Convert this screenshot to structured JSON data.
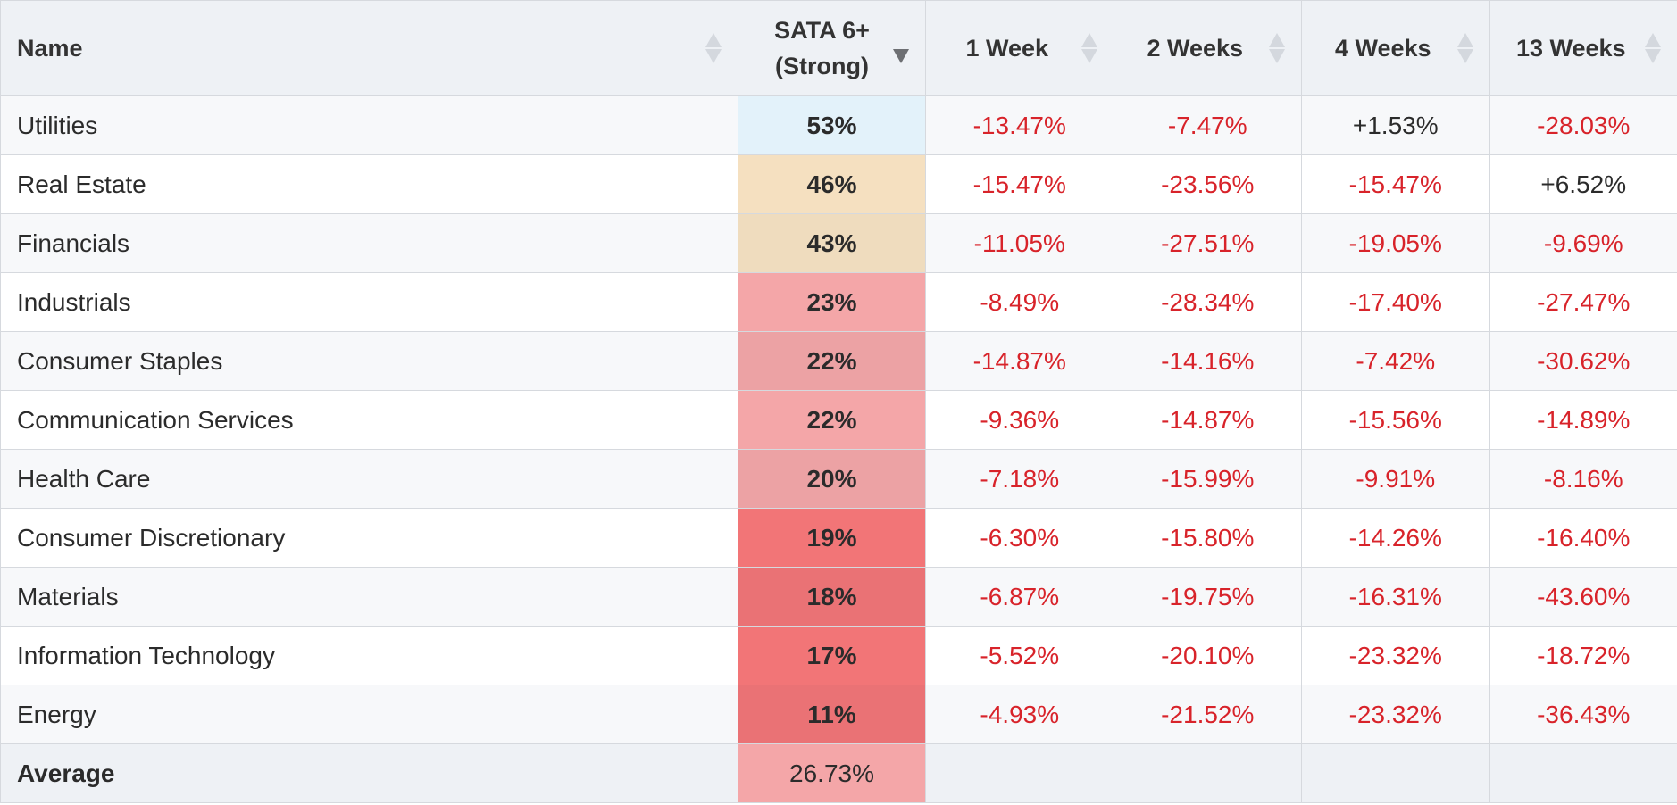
{
  "headers": {
    "name": "Name",
    "sata_line1": "SATA 6+",
    "sata_line2": "(Strong)",
    "w1": "1 Week",
    "w2": "2 Weeks",
    "w4": "4 Weeks",
    "w13": "13 Weeks",
    "sorted_column": "SATA 6+ (Strong)",
    "sort_direction": "descending"
  },
  "rows": [
    {
      "name": "Utilities",
      "sata": "53%",
      "sata_color": "#e3f2fa",
      "w1": "-13.47%",
      "w2": "-7.47%",
      "w4": "+1.53%",
      "w13": "-28.03%"
    },
    {
      "name": "Real Estate",
      "sata": "46%",
      "sata_color": "#f5e0c0",
      "w1": "-15.47%",
      "w2": "-23.56%",
      "w4": "-15.47%",
      "w13": "+6.52%"
    },
    {
      "name": "Financials",
      "sata": "43%",
      "sata_color": "#efdcbe",
      "w1": "-11.05%",
      "w2": "-27.51%",
      "w4": "-19.05%",
      "w13": "-9.69%"
    },
    {
      "name": "Industrials",
      "sata": "23%",
      "sata_color": "#f4a6a8",
      "w1": "-8.49%",
      "w2": "-28.34%",
      "w4": "-17.40%",
      "w13": "-27.47%"
    },
    {
      "name": "Consumer Staples",
      "sata": "22%",
      "sata_color": "#eca2a4",
      "w1": "-14.87%",
      "w2": "-14.16%",
      "w4": "-7.42%",
      "w13": "-30.62%"
    },
    {
      "name": "Communication Services",
      "sata": "22%",
      "sata_color": "#f4a6a8",
      "w1": "-9.36%",
      "w2": "-14.87%",
      "w4": "-15.56%",
      "w13": "-14.89%"
    },
    {
      "name": "Health Care",
      "sata": "20%",
      "sata_color": "#eca2a4",
      "w1": "-7.18%",
      "w2": "-15.99%",
      "w4": "-9.91%",
      "w13": "-8.16%"
    },
    {
      "name": "Consumer Discretionary",
      "sata": "19%",
      "sata_color": "#f27577",
      "w1": "-6.30%",
      "w2": "-15.80%",
      "w4": "-14.26%",
      "w13": "-16.40%"
    },
    {
      "name": "Materials",
      "sata": "18%",
      "sata_color": "#ea7275",
      "w1": "-6.87%",
      "w2": "-19.75%",
      "w4": "-16.31%",
      "w13": "-43.60%"
    },
    {
      "name": "Information Technology",
      "sata": "17%",
      "sata_color": "#f27577",
      "w1": "-5.52%",
      "w2": "-20.10%",
      "w4": "-23.32%",
      "w13": "-18.72%"
    },
    {
      "name": "Energy",
      "sata": "11%",
      "sata_color": "#ea7275",
      "w1": "-4.93%",
      "w2": "-21.52%",
      "w4": "-23.32%",
      "w13": "-36.43%"
    }
  ],
  "footer": {
    "label": "Average",
    "sata": "26.73%",
    "sata_color": "#f4a6a8"
  },
  "colors": {
    "negative": "#d8232a",
    "positive": "#2b2b2b",
    "header_bg": "#eef1f5"
  }
}
